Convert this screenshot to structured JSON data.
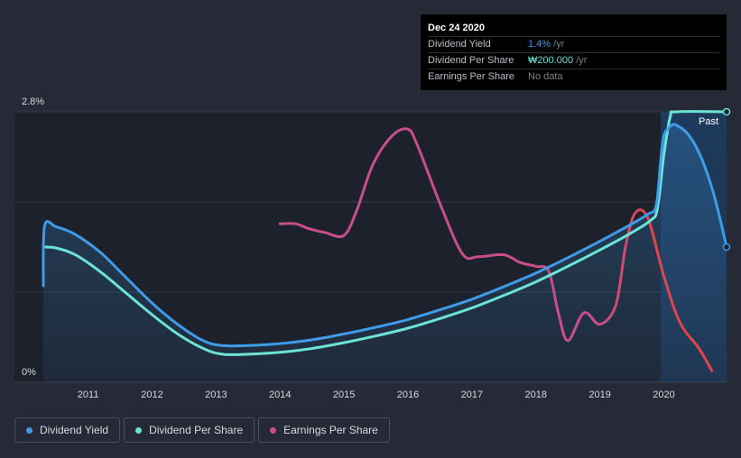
{
  "tooltip": {
    "date": "Dec 24 2020",
    "rows": [
      {
        "label": "Dividend Yield",
        "value": "1.4%",
        "unit": " /yr",
        "color": "#3f9be8"
      },
      {
        "label": "Dividend Per Share",
        "value": "₩200.000",
        "unit": " /yr",
        "color": "#6de3d6"
      },
      {
        "label": "Earnings Per Share",
        "value": "No data",
        "unit": "",
        "color": "#7a7f88"
      }
    ]
  },
  "past_label": "Past",
  "legend": [
    {
      "label": "Dividend Yield",
      "color": "#3f9be8"
    },
    {
      "label": "Dividend Per Share",
      "color": "#6de3d6"
    },
    {
      "label": "Earnings Per Share",
      "color": "#c94d8d"
    }
  ],
  "chart_data": {
    "type": "line",
    "x_ticks": [
      "2011",
      "2012",
      "2013",
      "2014",
      "2015",
      "2016",
      "2017",
      "2018",
      "2019",
      "2020"
    ],
    "y_ticks": [
      "2.8%",
      "0%"
    ],
    "ylim": [
      0,
      2.8
    ],
    "xlim": [
      2010.3,
      2020.98
    ],
    "series": [
      {
        "name": "Dividend Yield",
        "color": "#3f9be8",
        "points": [
          [
            2010.3,
            1.0
          ],
          [
            2010.32,
            1.62
          ],
          [
            2010.5,
            1.61
          ],
          [
            2010.8,
            1.53
          ],
          [
            2011.2,
            1.34
          ],
          [
            2011.6,
            1.08
          ],
          [
            2012.0,
            0.82
          ],
          [
            2012.4,
            0.6
          ],
          [
            2012.8,
            0.43
          ],
          [
            2013.1,
            0.38
          ],
          [
            2013.5,
            0.38
          ],
          [
            2014.0,
            0.4
          ],
          [
            2014.5,
            0.44
          ],
          [
            2015.0,
            0.5
          ],
          [
            2015.5,
            0.57
          ],
          [
            2016.0,
            0.65
          ],
          [
            2016.5,
            0.75
          ],
          [
            2017.0,
            0.86
          ],
          [
            2017.5,
            0.99
          ],
          [
            2018.0,
            1.13
          ],
          [
            2018.5,
            1.29
          ],
          [
            2019.0,
            1.46
          ],
          [
            2019.5,
            1.64
          ],
          [
            2019.75,
            1.74
          ],
          [
            2019.88,
            1.83
          ],
          [
            2019.95,
            2.3
          ],
          [
            2020.0,
            2.55
          ],
          [
            2020.1,
            2.65
          ],
          [
            2020.2,
            2.66
          ],
          [
            2020.4,
            2.55
          ],
          [
            2020.6,
            2.3
          ],
          [
            2020.8,
            1.9
          ],
          [
            2020.98,
            1.4
          ]
        ]
      },
      {
        "name": "Dividend Per Share",
        "color": "#6de3d6",
        "points": [
          [
            2010.3,
            1.4
          ],
          [
            2010.5,
            1.39
          ],
          [
            2010.8,
            1.32
          ],
          [
            2011.2,
            1.14
          ],
          [
            2011.6,
            0.92
          ],
          [
            2012.0,
            0.7
          ],
          [
            2012.4,
            0.5
          ],
          [
            2012.8,
            0.35
          ],
          [
            2013.1,
            0.29
          ],
          [
            2013.5,
            0.29
          ],
          [
            2014.0,
            0.31
          ],
          [
            2014.5,
            0.35
          ],
          [
            2015.0,
            0.41
          ],
          [
            2015.5,
            0.48
          ],
          [
            2016.0,
            0.56
          ],
          [
            2016.5,
            0.66
          ],
          [
            2017.0,
            0.77
          ],
          [
            2017.5,
            0.9
          ],
          [
            2018.0,
            1.04
          ],
          [
            2018.5,
            1.2
          ],
          [
            2019.0,
            1.37
          ],
          [
            2019.5,
            1.55
          ],
          [
            2019.8,
            1.68
          ],
          [
            2019.9,
            1.8
          ],
          [
            2020.0,
            2.35
          ],
          [
            2020.1,
            2.75
          ],
          [
            2020.2,
            2.8
          ],
          [
            2020.98,
            2.8
          ]
        ]
      },
      {
        "name": "Earnings Per Share",
        "color": "#c94d8d",
        "color_end": "#e0444e",
        "points": [
          [
            2014.0,
            1.64
          ],
          [
            2014.25,
            1.64
          ],
          [
            2014.45,
            1.59
          ],
          [
            2014.7,
            1.55
          ],
          [
            2015.0,
            1.52
          ],
          [
            2015.2,
            1.78
          ],
          [
            2015.45,
            2.25
          ],
          [
            2015.75,
            2.55
          ],
          [
            2016.0,
            2.62
          ],
          [
            2016.15,
            2.45
          ],
          [
            2016.5,
            1.85
          ],
          [
            2016.85,
            1.33
          ],
          [
            2017.1,
            1.3
          ],
          [
            2017.5,
            1.32
          ],
          [
            2017.75,
            1.24
          ],
          [
            2018.0,
            1.2
          ],
          [
            2018.2,
            1.15
          ],
          [
            2018.35,
            0.72
          ],
          [
            2018.5,
            0.43
          ],
          [
            2018.75,
            0.72
          ],
          [
            2019.0,
            0.6
          ],
          [
            2019.25,
            0.8
          ],
          [
            2019.4,
            1.4
          ],
          [
            2019.55,
            1.75
          ],
          [
            2019.75,
            1.7
          ],
          [
            2020.0,
            1.1
          ],
          [
            2020.25,
            0.62
          ],
          [
            2020.55,
            0.35
          ],
          [
            2020.75,
            0.12
          ]
        ]
      }
    ],
    "past_region_start": 2019.95,
    "grid": true
  }
}
